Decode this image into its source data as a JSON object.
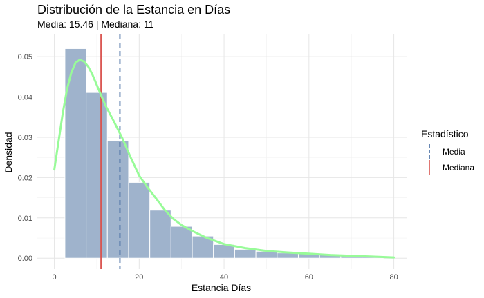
{
  "chart_data": {
    "type": "bar",
    "title": "Distribución de la Estancia en Días",
    "subtitle": "Media: 15.46 | Mediana: 11",
    "xlabel": "Estancia Días",
    "ylabel": "Densidad",
    "xlim": [
      -4,
      83
    ],
    "ylim": [
      -0.0027,
      0.0555
    ],
    "x_ticks": [
      0,
      20,
      40,
      60,
      80
    ],
    "y_ticks": [
      0,
      0.01,
      0.02,
      0.03,
      0.04,
      0.05
    ],
    "y_tick_labels": [
      "0.00",
      "0.01",
      "0.02",
      "0.03",
      "0.04",
      "0.05"
    ],
    "grid": true,
    "histogram": {
      "bin_width": 5,
      "bins": [
        {
          "start": 2.5,
          "end": 7.5,
          "density": 0.052
        },
        {
          "start": 7.5,
          "end": 12.5,
          "density": 0.0411
        },
        {
          "start": 12.5,
          "end": 17.5,
          "density": 0.0292
        },
        {
          "start": 17.5,
          "end": 22.5,
          "density": 0.0188
        },
        {
          "start": 22.5,
          "end": 27.5,
          "density": 0.0119
        },
        {
          "start": 27.5,
          "end": 32.5,
          "density": 0.0079
        },
        {
          "start": 32.5,
          "end": 37.5,
          "density": 0.0055
        },
        {
          "start": 37.5,
          "end": 42.5,
          "density": 0.0034
        },
        {
          "start": 42.5,
          "end": 47.5,
          "density": 0.0022
        },
        {
          "start": 47.5,
          "end": 52.5,
          "density": 0.0017
        },
        {
          "start": 52.5,
          "end": 57.5,
          "density": 0.0013
        },
        {
          "start": 57.5,
          "end": 62.5,
          "density": 0.0011
        },
        {
          "start": 62.5,
          "end": 67.5,
          "density": 0.0009
        },
        {
          "start": 67.5,
          "end": 72.5,
          "density": 0.0007
        },
        {
          "start": 72.5,
          "end": 77.5,
          "density": 0.0005
        }
      ],
      "fill_color": "#9fb3cc"
    },
    "density_curve": {
      "x": [
        0,
        1,
        2,
        3,
        4,
        5,
        6,
        7,
        8,
        9,
        10,
        12,
        14,
        16,
        18,
        20,
        22,
        24,
        26,
        28,
        30,
        33,
        36,
        40,
        45,
        50,
        55,
        60,
        65,
        70,
        75,
        80
      ],
      "y": [
        0.022,
        0.029,
        0.036,
        0.042,
        0.046,
        0.0485,
        0.0492,
        0.0488,
        0.0475,
        0.0455,
        0.043,
        0.038,
        0.034,
        0.0298,
        0.025,
        0.0205,
        0.0175,
        0.0148,
        0.012,
        0.0098,
        0.0082,
        0.0065,
        0.005,
        0.0035,
        0.0025,
        0.0018,
        0.0014,
        0.0011,
        0.0008,
        0.0006,
        0.0004,
        0.0002
      ],
      "color": "#98fb98"
    },
    "reference_lines": [
      {
        "x": 15.46,
        "color": "#4169a0",
        "style": "dashed"
      },
      {
        "x": 11,
        "color": "#d9534f",
        "style": "solid"
      }
    ],
    "legend": {
      "title": "Estadístico",
      "placement": "right",
      "entries": [
        {
          "label": "Media",
          "color": "#4169a0",
          "style": "dashed"
        },
        {
          "label": "Mediana",
          "color": "#d9534f",
          "style": "solid"
        }
      ]
    }
  }
}
